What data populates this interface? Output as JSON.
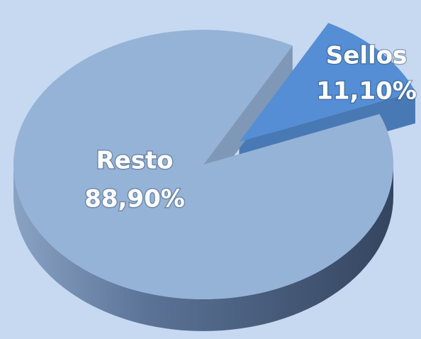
{
  "chart_data": {
    "type": "pie",
    "categories": [
      "Sellos",
      "Resto"
    ],
    "values": [
      11.1,
      88.9
    ],
    "value_labels": [
      "11,10%",
      "88,90%"
    ],
    "colors": [
      "#558ed5",
      "#95b3d7"
    ]
  }
}
